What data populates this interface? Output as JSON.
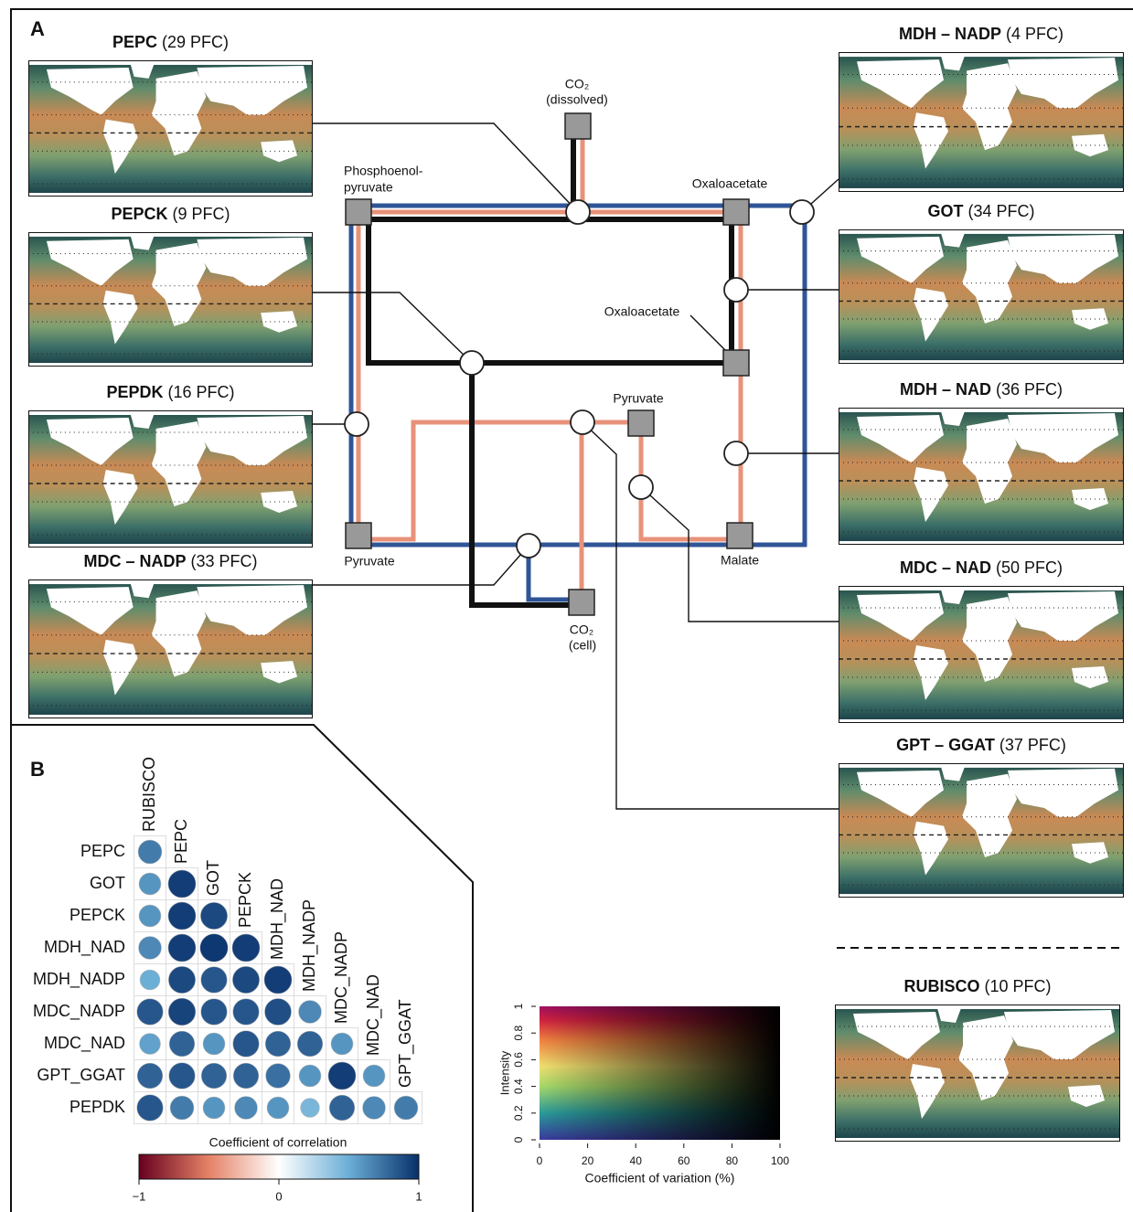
{
  "panel_a": {
    "label": "A",
    "maps": [
      {
        "name": "PEPC",
        "count": "(29 PFC)"
      },
      {
        "name": "PEPCK",
        "count": "(9 PFC)"
      },
      {
        "name": "PEPDK",
        "count": "(16 PFC)"
      },
      {
        "name": "MDC – NADP",
        "count": "(33 PFC)"
      },
      {
        "name": "MDH – NADP",
        "count": "(4 PFC)"
      },
      {
        "name": "GOT",
        "count": "(34 PFC)"
      },
      {
        "name": "MDH – NAD",
        "count": "(36 PFC)"
      },
      {
        "name": "MDC – NAD",
        "count": "(50 PFC)"
      },
      {
        "name": "GPT – GGAT",
        "count": "(37 PFC)"
      },
      {
        "name": "RUBISCO",
        "count": "(10 PFC)"
      }
    ],
    "node_labels": [
      "CO₂",
      "(dissolved)",
      "Phosphoenol-",
      "pyruvate",
      "Oxaloacetate",
      "Oxaloacetate",
      "Pyruvate",
      "Pyruvate",
      "Malate",
      "CO₂",
      "(cell)"
    ]
  },
  "panel_b": {
    "label": "B",
    "labels": [
      "RUBISCO",
      "PEPC",
      "GOT",
      "PEPCK",
      "MDH_NAD",
      "MDH_NADP",
      "MDC_NADP",
      "MDC_NAD",
      "GPT_GGAT",
      "PEPDK"
    ],
    "matrix": [
      [
        0.7
      ],
      [
        0.6,
        0.95
      ],
      [
        0.6,
        0.95,
        0.9
      ],
      [
        0.65,
        0.95,
        0.97,
        0.95
      ],
      [
        0.5,
        0.9,
        0.85,
        0.9,
        0.95
      ],
      [
        0.85,
        0.92,
        0.85,
        0.85,
        0.88,
        0.65
      ],
      [
        0.55,
        0.8,
        0.6,
        0.85,
        0.8,
        0.8,
        0.6
      ],
      [
        0.8,
        0.85,
        0.8,
        0.8,
        0.75,
        0.6,
        0.95,
        0.6
      ],
      [
        0.85,
        0.7,
        0.6,
        0.65,
        0.6,
        0.45,
        0.8,
        0.65,
        0.7
      ]
    ],
    "colorbar": {
      "title": "Coefficient of correlation",
      "lim": [
        -1,
        1
      ],
      "ticks": [
        {
          "value": -1,
          "label": "−1"
        },
        0,
        1
      ]
    }
  },
  "legend": {
    "xlabel": "Coefficient of variation (%)",
    "ylabel": "Intensity",
    "xlim": [
      0,
      100
    ],
    "xticks": [
      0,
      20,
      40,
      60,
      80,
      100
    ],
    "ylim": [
      0,
      1
    ],
    "yticks": [
      0,
      0.2,
      0.4,
      0.6,
      0.8,
      1
    ]
  }
}
